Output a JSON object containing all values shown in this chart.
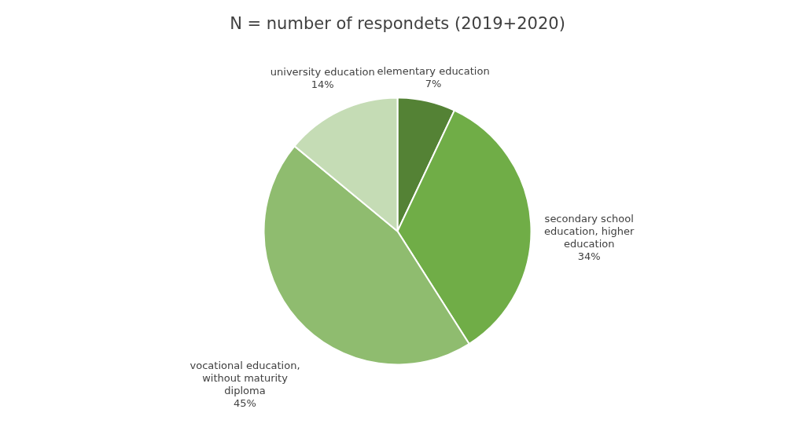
{
  "chart_data": {
    "type": "pie",
    "title": "N = number of respondets (2019+2020)",
    "categories": [
      "elementary education",
      "secondary school education, higher education",
      "vocational education, without maturity diploma",
      "university education"
    ],
    "values": [
      7,
      34,
      45,
      14
    ],
    "value_labels": [
      "7%",
      "34%",
      "45%",
      "14%"
    ],
    "colors": [
      "#548235",
      "#70ad47",
      "#8fbc6f",
      "#c5dcb5"
    ],
    "legend": false
  }
}
